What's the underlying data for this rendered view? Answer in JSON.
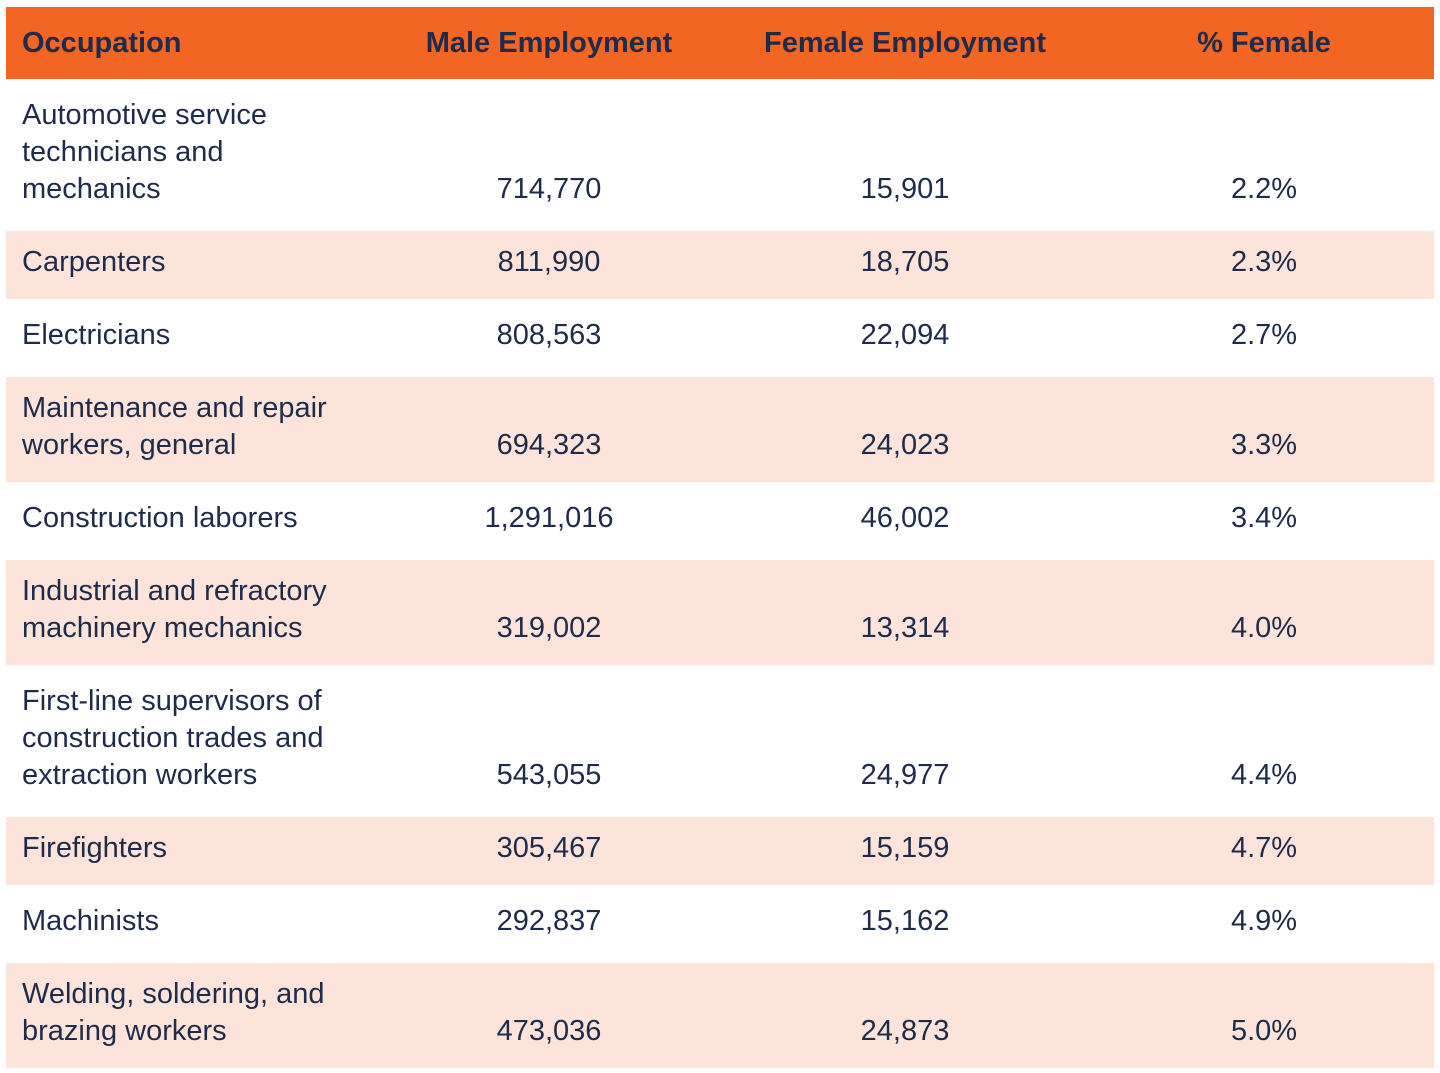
{
  "colors": {
    "header_bg": "#f26522",
    "row_alt_bg": "#fce4da",
    "text": "#1f2b4a",
    "row_bg": "#ffffff"
  },
  "table": {
    "headers": {
      "occupation": "Occupation",
      "male": "Male Employment",
      "female": "Female Employment",
      "pct": "% Female"
    },
    "rows": [
      {
        "occupation": "Automotive service\ntechnicians and\nmechanics",
        "male": "714,770",
        "female": "15,901",
        "pct": "2.2%"
      },
      {
        "occupation": "Carpenters",
        "male": "811,990",
        "female": "18,705",
        "pct": "2.3%"
      },
      {
        "occupation": "Electricians",
        "male": "808,563",
        "female": "22,094",
        "pct": "2.7%"
      },
      {
        "occupation": "Maintenance and repair\nworkers, general",
        "male": "694,323",
        "female": "24,023",
        "pct": "3.3%"
      },
      {
        "occupation": "Construction laborers",
        "male": "1,291,016",
        "female": "46,002",
        "pct": "3.4%"
      },
      {
        "occupation": "Industrial and refractory\nmachinery mechanics",
        "male": "319,002",
        "female": "13,314",
        "pct": "4.0%"
      },
      {
        "occupation": "First-line supervisors of\nconstruction trades and\nextraction workers",
        "male": "543,055",
        "female": "24,977",
        "pct": "4.4%"
      },
      {
        "occupation": "Firefighters",
        "male": "305,467",
        "female": "15,159",
        "pct": "4.7%"
      },
      {
        "occupation": "Machinists",
        "male": "292,837",
        "female": "15,162",
        "pct": "4.9%"
      },
      {
        "occupation": "Welding, soldering, and\nbrazing workers",
        "male": "473,036",
        "female": "24,873",
        "pct": "5.0%"
      }
    ]
  },
  "chart_data": {
    "type": "table",
    "title": "",
    "columns": [
      "Occupation",
      "Male Employment",
      "Female Employment",
      "% Female"
    ],
    "rows": [
      [
        "Automotive service technicians and mechanics",
        714770,
        15901,
        "2.2%"
      ],
      [
        "Carpenters",
        811990,
        18705,
        "2.3%"
      ],
      [
        "Electricians",
        808563,
        22094,
        "2.7%"
      ],
      [
        "Maintenance and repair workers, general",
        694323,
        24023,
        "3.3%"
      ],
      [
        "Construction laborers",
        1291016,
        46002,
        "3.4%"
      ],
      [
        "Industrial and refractory machinery mechanics",
        319002,
        13314,
        "4.0%"
      ],
      [
        "First-line supervisors of construction trades and extraction workers",
        543055,
        24977,
        "4.4%"
      ],
      [
        "Firefighters",
        305467,
        15159,
        "4.7%"
      ],
      [
        "Machinists",
        292837,
        15162,
        "4.9%"
      ],
      [
        "Welding, soldering, and brazing workers",
        473036,
        24873,
        "5.0%"
      ]
    ],
    "layout": {
      "header_background": "#f26522",
      "zebra_striping": true,
      "stripe_color": "#fce4da",
      "grid": false
    }
  }
}
